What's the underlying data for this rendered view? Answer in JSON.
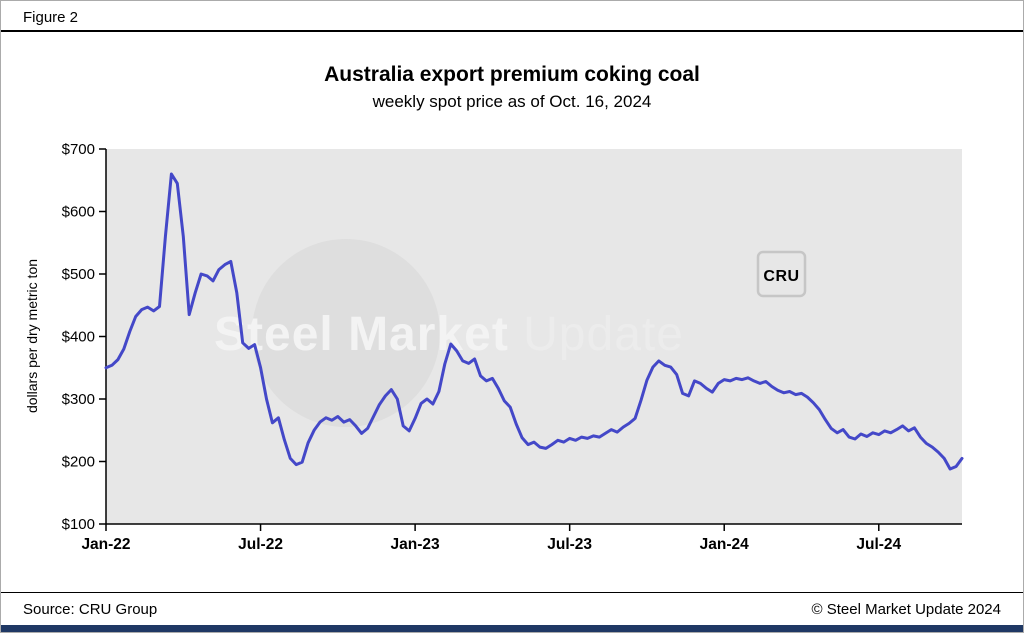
{
  "figure_label": "Figure 2",
  "source": "Source: CRU Group",
  "copyright": "© Steel Market Update 2024",
  "watermark": {
    "text_bold": "Steel Market",
    "text_light": "Update",
    "logo": "CRU"
  },
  "colors": {
    "line": "#4448c8",
    "plot_bg": "#e7e7e7",
    "watermark_circle": "#dedede",
    "watermark_text_bold": "#f3f3f3",
    "watermark_text_light": "#ececec",
    "watermark_logo": "#c6c6c6",
    "footer_bar": "#1f3864",
    "axis": "#000000"
  },
  "chart_data": {
    "type": "line",
    "title": "Australia export premium coking coal",
    "subtitle": "weekly spot price as of Oct. 16, 2024",
    "ylabel": "dollars per dry metric ton",
    "xlabel": "",
    "ylim": [
      100,
      700
    ],
    "yticks": [
      100,
      200,
      300,
      400,
      500,
      600,
      700
    ],
    "ytick_labels": [
      "$100",
      "$200",
      "$300",
      "$400",
      "$500",
      "$600",
      "$700"
    ],
    "xtick_labels": [
      "Jan-22",
      "Jul-22",
      "Jan-23",
      "Jul-23",
      "Jan-24",
      "Jul-24"
    ],
    "xtick_weeks": [
      0,
      26,
      52,
      78,
      104,
      130
    ],
    "x_unit": "weeks since Jan-2022",
    "grid": false,
    "legend": false,
    "series": [
      {
        "name": "Australia export premium coking coal weekly spot price ($/dmt)",
        "values": [
          350,
          354,
          363,
          380,
          408,
          432,
          443,
          447,
          441,
          448,
          560,
          660,
          645,
          560,
          435,
          470,
          500,
          497,
          489,
          507,
          515,
          520,
          470,
          390,
          381,
          387,
          350,
          300,
          262,
          270,
          235,
          205,
          195,
          199,
          230,
          250,
          263,
          270,
          266,
          272,
          263,
          267,
          257,
          245,
          253,
          272,
          291,
          305,
          315,
          300,
          257,
          249,
          269,
          293,
          300,
          292,
          312,
          356,
          388,
          377,
          361,
          357,
          364,
          337,
          329,
          333,
          317,
          297,
          287,
          260,
          238,
          227,
          231,
          223,
          221,
          227,
          234,
          231,
          237,
          234,
          239,
          237,
          241,
          239,
          245,
          251,
          247,
          255,
          261,
          269,
          298,
          330,
          351,
          361,
          354,
          351,
          339,
          309,
          305,
          329,
          325,
          317,
          311,
          325,
          331,
          329,
          333,
          331,
          334,
          329,
          325,
          328,
          320,
          314,
          310,
          312,
          307,
          309,
          303,
          294,
          283,
          267,
          253,
          246,
          251,
          239,
          236,
          244,
          240,
          246,
          243,
          249,
          246,
          251,
          257,
          249,
          254,
          239,
          229,
          223,
          215,
          205,
          188,
          192,
          205
        ]
      }
    ]
  }
}
